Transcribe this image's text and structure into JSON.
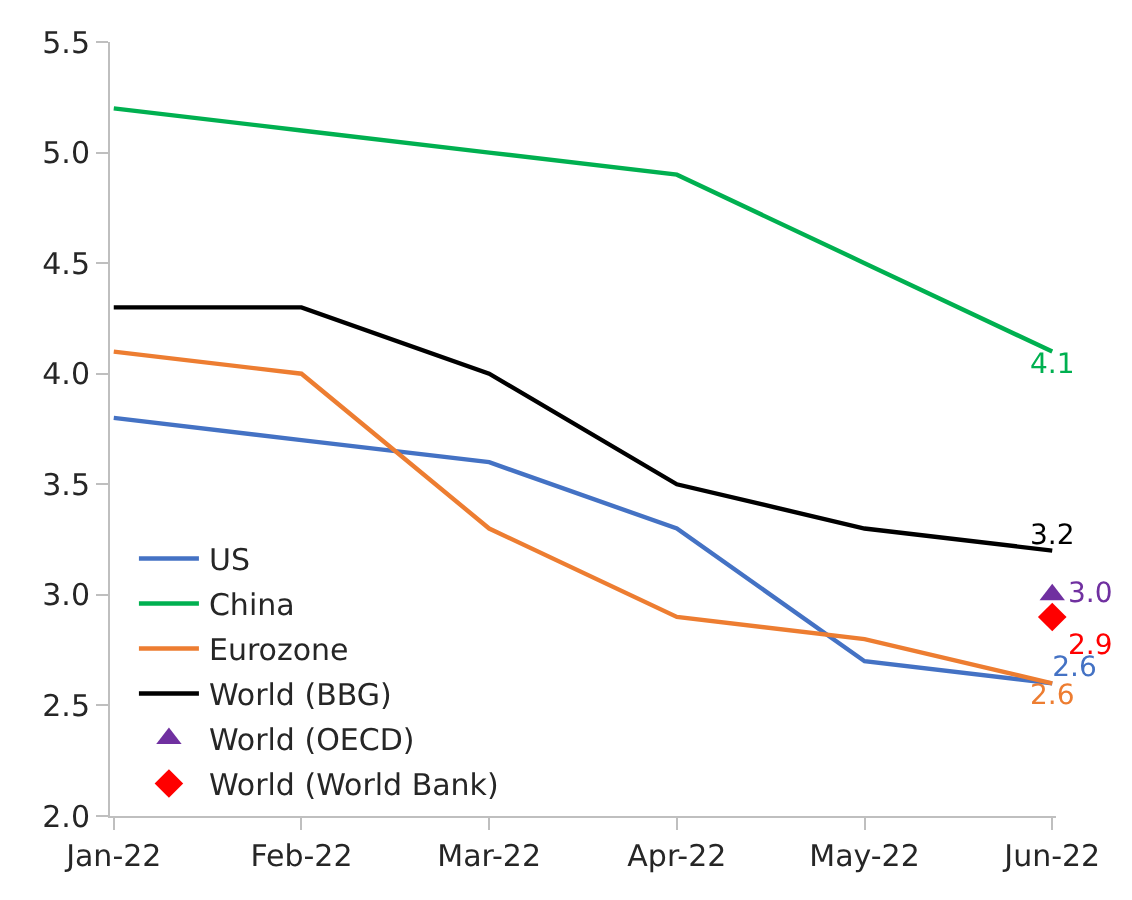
{
  "chart_data": {
    "type": "line",
    "categories": [
      "Jan-22",
      "Feb-22",
      "Mar-22",
      "Apr-22",
      "May-22",
      "Jun-22"
    ],
    "ylim": [
      2.0,
      5.5
    ],
    "yticks": [
      {
        "value": 2.0,
        "label": "2.0"
      },
      {
        "value": 2.5,
        "label": "2.5"
      },
      {
        "value": 3.0,
        "label": "3.0"
      },
      {
        "value": 3.5,
        "label": "3.5"
      },
      {
        "value": 4.0,
        "label": "4.0"
      },
      {
        "value": 4.5,
        "label": "4.5"
      },
      {
        "value": 5.0,
        "label": "5.0"
      },
      {
        "value": 5.5,
        "label": "5.5"
      }
    ],
    "legend": "bottom left",
    "marker": "none",
    "line_style": "solid",
    "series": [
      {
        "name": "US",
        "color": "#4472c4",
        "values": [
          3.8,
          3.7,
          3.6,
          3.3,
          2.7,
          2.6
        ],
        "value_labels": [
          null,
          null,
          null,
          null,
          null,
          "2.6"
        ]
      },
      {
        "name": "China",
        "color": "#00b050",
        "values": [
          5.2,
          5.1,
          5.0,
          4.9,
          4.5,
          4.1
        ],
        "value_labels": [
          null,
          null,
          null,
          null,
          null,
          "4.1"
        ]
      },
      {
        "name": "Eurozone",
        "color": "#ed7d31",
        "values": [
          4.1,
          4.0,
          3.3,
          2.9,
          2.8,
          2.6
        ],
        "value_labels": [
          null,
          null,
          null,
          null,
          null,
          "2.6"
        ]
      },
      {
        "name": "World (BBG)",
        "color": "#000000",
        "values": [
          4.3,
          4.3,
          4.0,
          3.5,
          3.3,
          3.2
        ],
        "value_labels": [
          null,
          null,
          null,
          null,
          null,
          "3.2"
        ]
      },
      {
        "name": "World (OECD)",
        "type": "scatter",
        "marker": "triangle",
        "color": "#7030a0",
        "values": [
          null,
          null,
          null,
          null,
          null,
          3.0
        ],
        "value_labels": [
          null,
          null,
          null,
          null,
          null,
          "3.0"
        ]
      },
      {
        "name": "World (World Bank)",
        "type": "scatter",
        "marker": "diamond",
        "color": "#ff0000",
        "values": [
          null,
          null,
          null,
          null,
          null,
          2.9
        ],
        "value_labels": [
          null,
          null,
          null,
          null,
          null,
          "2.9"
        ]
      }
    ]
  }
}
